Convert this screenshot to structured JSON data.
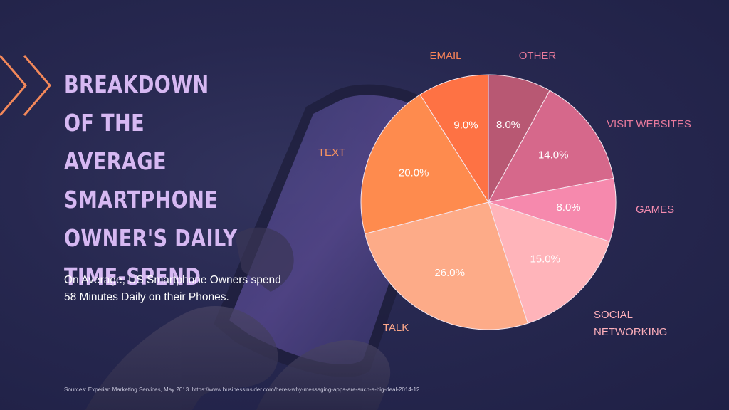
{
  "header": {
    "title": "BREAKDOWN OF THE AVERAGE SMARTPHONE OWNER'S DAILY TIME-SPEND",
    "subtitle": "On Average, US Smartphone Owners spend 58 Minutes Daily on their Phones.",
    "source": "Sources: Experian Marketing Services, May 2013. https://www.businessinsider.com/heres-why-messaging-apps-are-such-a-big-deal-2014-12"
  },
  "colors": {
    "title": "#d6b8f2",
    "accent": "#f3885a",
    "background": "#272850"
  },
  "chart_data": {
    "type": "pie",
    "title": "BREAKDOWN OF THE AVERAGE SMARTPHONE OWNER'S DAILY TIME-SPEND",
    "start_angle_deg": 0,
    "direction": "clockwise",
    "slices": [
      {
        "label": "OTHER",
        "value": 8.0,
        "display": "8.0%",
        "color": "#b85873",
        "label_color": "#e7799a"
      },
      {
        "label": "VISIT WEBSITES",
        "value": 14.0,
        "display": "14.0%",
        "color": "#d6688b",
        "label_color": "#e8799c"
      },
      {
        "label": "GAMES",
        "value": 8.0,
        "display": "8.0%",
        "color": "#f689ad",
        "label_color": "#f48cb0"
      },
      {
        "label": "SOCIAL NETWORKING",
        "label_lines": [
          "SOCIAL",
          "NETWORKING"
        ],
        "value": 15.0,
        "display": "15.0%",
        "color": "#ffb4ba",
        "label_color": "#ffb0bb"
      },
      {
        "label": "TALK",
        "value": 26.0,
        "display": "26.0%",
        "color": "#fdab88",
        "label_color": "#fca78a"
      },
      {
        "label": "TEXT",
        "value": 20.0,
        "display": "20.0%",
        "color": "#fe8b4e",
        "label_color": "#fb9560"
      },
      {
        "label": "EMAIL",
        "value": 9.0,
        "display": "9.0%",
        "color": "#fe7244",
        "label_color": "#f98458"
      }
    ]
  }
}
